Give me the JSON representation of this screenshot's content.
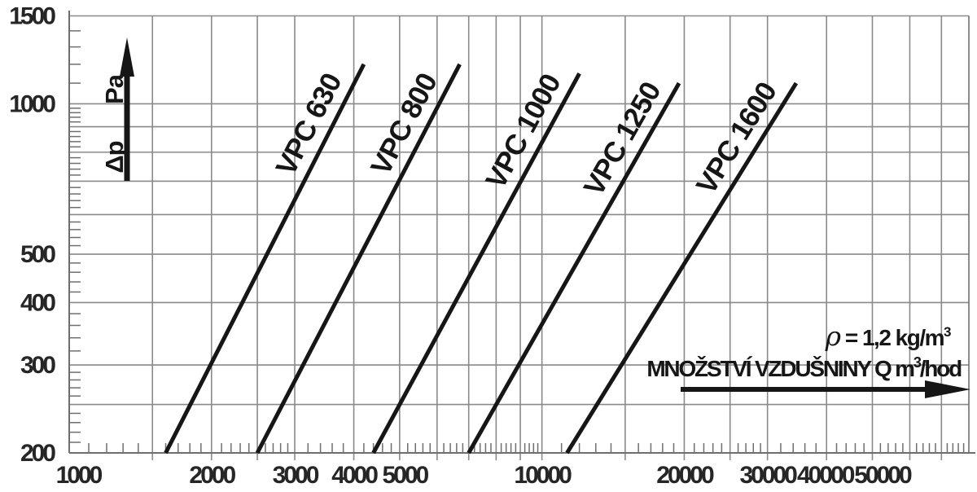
{
  "colors": {
    "background": "#ffffff",
    "grid": "#8a8a8a",
    "axis": "#6f6f6f",
    "curve": "#161616",
    "text": "#262626"
  },
  "chart_data": {
    "type": "line",
    "title": "",
    "description": "Fan pressure-drop vs air-flow selection chart, log-log scales, five straight performance lines",
    "x_axis": {
      "scale": "log",
      "range": [
        1000,
        80000
      ],
      "title": "MNOŽSTVÍ VZDUŠNINY Q",
      "unit": {
        "base": "m",
        "sup": "3",
        "rest": "/hod"
      },
      "labeled_ticks": [
        {
          "v": 1000,
          "label": "1000"
        },
        {
          "v": 2000,
          "label": "2000"
        },
        {
          "v": 3000,
          "label": "3000"
        },
        {
          "v": 4000,
          "label": "4000"
        },
        {
          "v": 5000,
          "label": "5000"
        },
        {
          "v": 10000,
          "label": "10000"
        },
        {
          "v": 20000,
          "label": "20000"
        },
        {
          "v": 30000,
          "label": "30000"
        },
        {
          "v": 40000,
          "label": "40000"
        },
        {
          "v": 50000,
          "label": "50000"
        }
      ],
      "gridlines": [
        1500,
        2000,
        2500,
        3000,
        4000,
        5000,
        6000,
        7000,
        8000,
        9000,
        10000,
        15000,
        20000,
        25000,
        30000,
        40000,
        50000,
        60000,
        70000
      ],
      "tick_boundaries": [
        1000,
        1500,
        2000,
        2500,
        3000,
        4000,
        5000,
        6000,
        7000,
        8000,
        9000,
        10000,
        15000,
        20000,
        25000,
        30000,
        40000,
        50000,
        60000,
        70000,
        80000
      ]
    },
    "y_axis": {
      "scale": "log",
      "range": [
        200,
        1500
      ],
      "label": "Δp",
      "unit": "Pa",
      "labeled_ticks": [
        {
          "v": 1500,
          "label": "1500"
        },
        {
          "v": 1000,
          "label": "1000"
        },
        {
          "v": 500,
          "label": "500"
        },
        {
          "v": 400,
          "label": "400"
        },
        {
          "v": 300,
          "label": "300"
        },
        {
          "v": 200,
          "label": "200"
        }
      ],
      "gridlines": [
        250,
        300,
        400,
        500,
        600,
        700,
        800,
        900,
        1000,
        1500
      ],
      "tick_boundaries": [
        200,
        250,
        300,
        400,
        500,
        600,
        700,
        800,
        900,
        1000,
        1500
      ]
    },
    "annotations": {
      "density": {
        "rho": "ρ",
        "text": " = 1,2 kg/m",
        "sup": "3"
      }
    },
    "series": [
      {
        "name": "VPC 630",
        "points": [
          {
            "q": 1600,
            "dp": 200
          },
          {
            "q": 4200,
            "dp": 1200
          }
        ]
      },
      {
        "name": "VPC 800",
        "points": [
          {
            "q": 2500,
            "dp": 200
          },
          {
            "q": 6700,
            "dp": 1200
          }
        ]
      },
      {
        "name": "VPC 1000",
        "points": [
          {
            "q": 4400,
            "dp": 200
          },
          {
            "q": 12000,
            "dp": 1150
          }
        ]
      },
      {
        "name": "VPC 1250",
        "points": [
          {
            "q": 7000,
            "dp": 200
          },
          {
            "q": 19500,
            "dp": 1100
          }
        ]
      },
      {
        "name": "VPC 1600",
        "points": [
          {
            "q": 11300,
            "dp": 200
          },
          {
            "q": 34500,
            "dp": 1100
          }
        ]
      }
    ],
    "legend": {
      "show": false
    },
    "grid": "on"
  }
}
